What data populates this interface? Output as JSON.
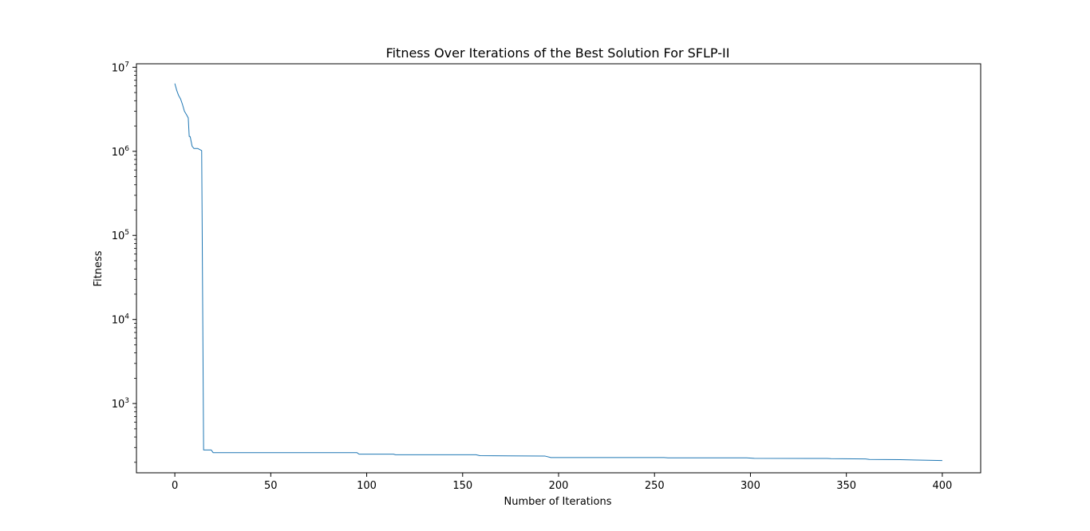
{
  "chart_data": {
    "type": "line",
    "title": "Fitness Over Iterations of the Best Solution For SFLP-II",
    "xlabel": "Number of Iterations",
    "ylabel": "Fitness",
    "yscale": "log",
    "xlim": [
      -20,
      420
    ],
    "ylim": [
      150,
      11000000
    ],
    "x_ticks": [
      0,
      50,
      100,
      150,
      200,
      250,
      300,
      350,
      400
    ],
    "y_ticks": [
      {
        "value": 1000,
        "base": "10",
        "exp": "3"
      },
      {
        "value": 10000,
        "base": "10",
        "exp": "4"
      },
      {
        "value": 100000,
        "base": "10",
        "exp": "5"
      },
      {
        "value": 1000000,
        "base": "10",
        "exp": "6"
      },
      {
        "value": 10000000,
        "base": "10",
        "exp": "7"
      }
    ],
    "grid": false,
    "line_color": "#1f77b4",
    "series": [
      {
        "points": [
          [
            0,
            6400000
          ],
          [
            1,
            5300000
          ],
          [
            2,
            4600000
          ],
          [
            3,
            4200000
          ],
          [
            4,
            3600000
          ],
          [
            5,
            3000000
          ],
          [
            6,
            2750000
          ],
          [
            7,
            2500000
          ],
          [
            7.5,
            1500000
          ],
          [
            8,
            1500000
          ],
          [
            9,
            1150000
          ],
          [
            10,
            1080000
          ],
          [
            12,
            1080000
          ],
          [
            13,
            1050000
          ],
          [
            14,
            1020000
          ],
          [
            15,
            280
          ],
          [
            19,
            280
          ],
          [
            20,
            260
          ],
          [
            95,
            260
          ],
          [
            96,
            250
          ],
          [
            114,
            250
          ],
          [
            115,
            246
          ],
          [
            157,
            246
          ],
          [
            159,
            240
          ],
          [
            193,
            237
          ],
          [
            196,
            228
          ],
          [
            255,
            228
          ],
          [
            257,
            226
          ],
          [
            298,
            226
          ],
          [
            302,
            223
          ],
          [
            340,
            222
          ],
          [
            342,
            221
          ],
          [
            360,
            219
          ],
          [
            362,
            216
          ],
          [
            378,
            215
          ],
          [
            400,
            210
          ]
        ]
      }
    ]
  }
}
